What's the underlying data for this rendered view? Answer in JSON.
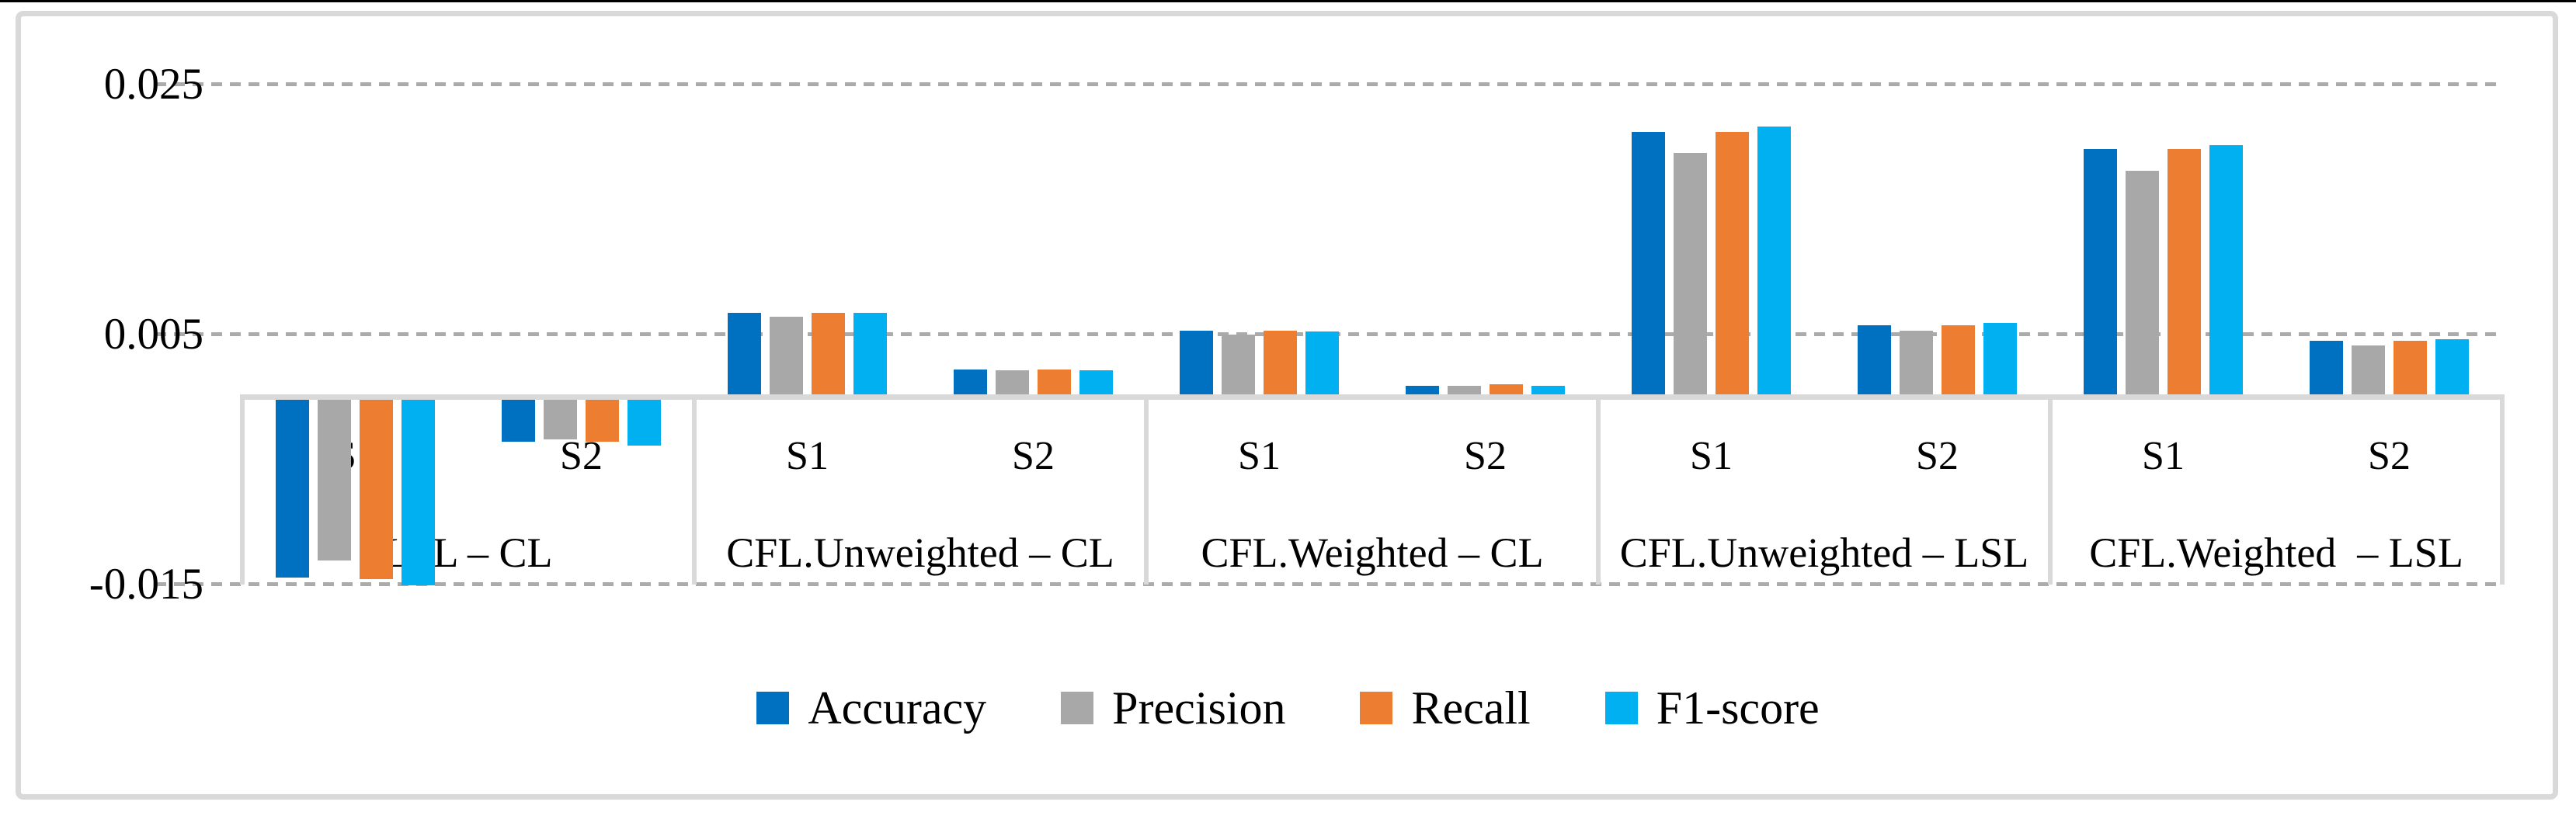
{
  "chart_data": {
    "type": "bar",
    "title": "",
    "xlabel": "",
    "ylabel": "",
    "y_axis": {
      "tick_labels": [
        "0.025",
        "0.005",
        "-0.015"
      ],
      "tick_values": [
        0.025,
        0.005,
        -0.015
      ],
      "baseline": 0,
      "ylim": [
        -0.0165,
        0.0285
      ],
      "gridlines": "dashed"
    },
    "legend_position": "bottom",
    "series": [
      {
        "name": "Accuracy",
        "color": "#0070c0"
      },
      {
        "name": "Precision",
        "color": "#a8a8a8"
      },
      {
        "name": "Recall",
        "color": "#ec7d31"
      },
      {
        "name": "F1-score",
        "color": "#00b0f0"
      }
    ],
    "groups": [
      {
        "label": "LSL – CL",
        "subgroups": [
          {
            "label": "S1",
            "values": [
              -0.0145,
              -0.0131,
              -0.0146,
              -0.0151
            ]
          },
          {
            "label": "S2",
            "values": [
              -0.0036,
              -0.0034,
              -0.0036,
              -0.0039
            ]
          }
        ]
      },
      {
        "label": "CFL.Unweighted – CL",
        "subgroups": [
          {
            "label": "S1",
            "values": [
              0.0067,
              0.0064,
              0.0067,
              0.0067
            ]
          },
          {
            "label": "S2",
            "values": [
              0.0022,
              0.0021,
              0.0022,
              0.0021
            ]
          }
        ]
      },
      {
        "label": "CFL.Weighted – CL",
        "subgroups": [
          {
            "label": "S1",
            "values": [
              0.0053,
              0.005,
              0.0053,
              0.0052
            ]
          },
          {
            "label": "S2",
            "values": [
              0.0009,
              0.0009,
              0.001,
              0.0009
            ]
          }
        ]
      },
      {
        "label": "CFL.Unweighted – LSL",
        "subgroups": [
          {
            "label": "S1",
            "values": [
              0.0212,
              0.0195,
              0.0212,
              0.0216
            ]
          },
          {
            "label": "S2",
            "values": [
              0.0057,
              0.0053,
              0.0057,
              0.0059
            ]
          }
        ]
      },
      {
        "label": "CFL.Weighted  – LSL",
        "subgroups": [
          {
            "label": "S1",
            "values": [
              0.0198,
              0.0181,
              0.0198,
              0.0201
            ]
          },
          {
            "label": "S2",
            "values": [
              0.0045,
              0.0041,
              0.0045,
              0.0046
            ]
          }
        ]
      }
    ],
    "frame_color": "#d9d9d9",
    "gridline_color": "#ababab"
  }
}
